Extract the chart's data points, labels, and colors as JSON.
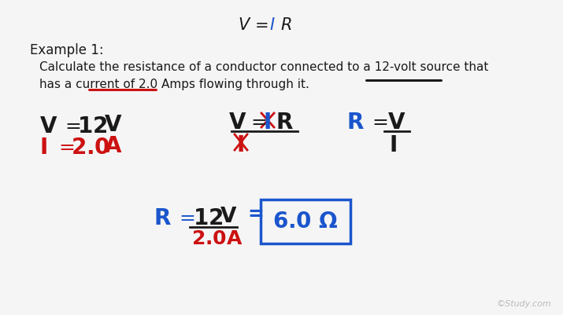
{
  "background_color": "#f5f5f5",
  "example_label": "Example 1:",
  "problem_line1": "Calculate the resistance of a conductor connected to a 12-volt source that",
  "problem_line2": "has a current of 2.0 Amps flowing through it.",
  "watermark": "©Study.com",
  "colors": {
    "black": "#1a1a1a",
    "red": "#cc1111",
    "blue": "#1a55cc",
    "background": "#f5f5f5",
    "watermark": "#bbbbbb"
  }
}
